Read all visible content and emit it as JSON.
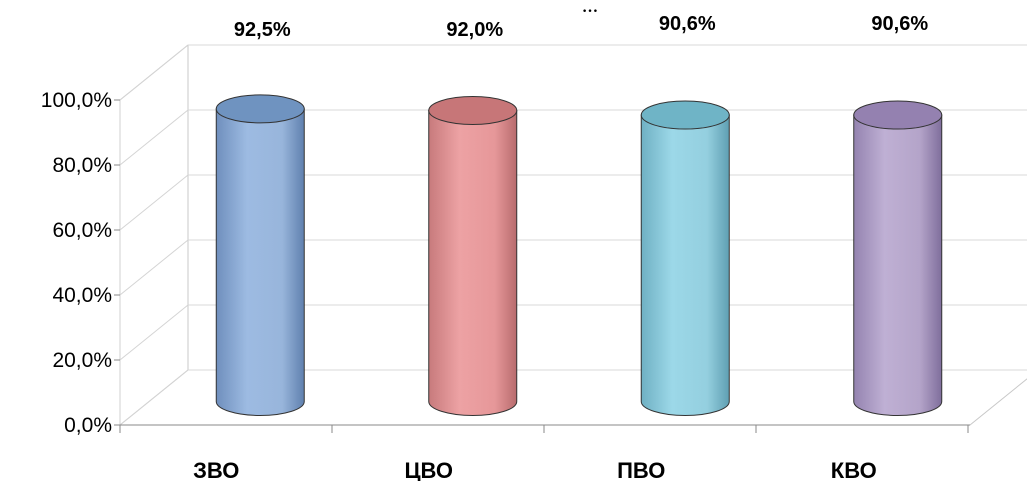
{
  "chart_data": {
    "type": "bar",
    "title": "",
    "title_fragment": "…",
    "categories": [
      "ЗВО",
      "ЦВО",
      "ПВО",
      "КВО"
    ],
    "values": [
      92.5,
      92.0,
      90.6,
      90.6
    ],
    "data_labels": [
      "92,5%",
      "92,0%",
      "90,6%",
      "90,6%"
    ],
    "ylim": [
      0,
      100
    ],
    "yticks": [
      0,
      20,
      40,
      60,
      80,
      100
    ],
    "ytick_labels": [
      "0,0%",
      "20,0%",
      "40,0%",
      "60,0%",
      "80,0%",
      "100,0%"
    ],
    "xlabel": "",
    "ylabel": "",
    "grid": true,
    "style": "3d-cylinder",
    "colors": [
      "#95b3d7",
      "#e6989a",
      "#93cddd",
      "#b3a2c7"
    ],
    "top_colors": [
      "#6f93c0",
      "#c77678",
      "#6fb4c6",
      "#9481b0"
    ]
  }
}
